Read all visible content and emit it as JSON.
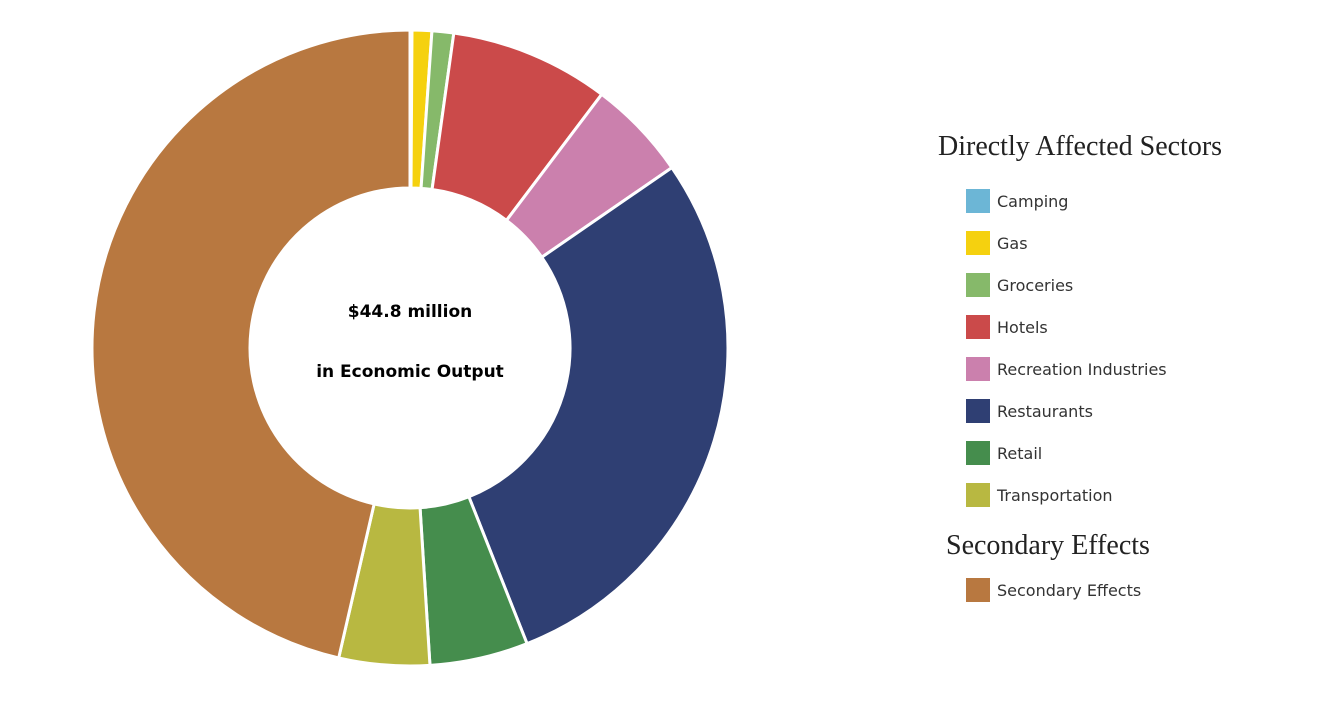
{
  "chart_data": {
    "type": "pie",
    "center_text": [
      "$44.8 million",
      "in Economic Output"
    ],
    "legend_titles": [
      "Directly Affected Sectors",
      "Secondary Effects"
    ],
    "categories": [
      "Camping",
      "Gas",
      "Groceries",
      "Hotels",
      "Recreation Industries",
      "Restaurants",
      "Retail",
      "Transportation",
      "Secondary Effects"
    ],
    "values": [
      0.1,
      1,
      1.1,
      8.1,
      5.1,
      28.6,
      5,
      4.6,
      46.4
    ],
    "colors": [
      "#6cb6d6",
      "#f5d10f",
      "#86b96a",
      "#cb4a4a",
      "#cb80ad",
      "#2f3f73",
      "#458d4d",
      "#b8b841",
      "#b87840"
    ]
  }
}
